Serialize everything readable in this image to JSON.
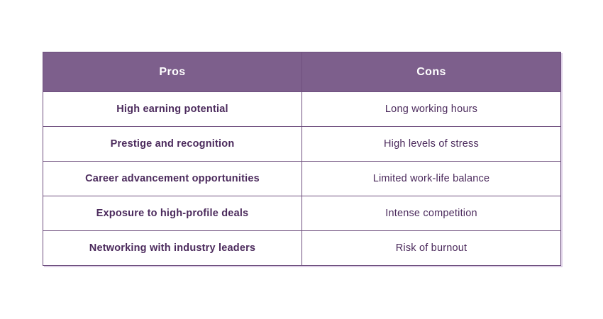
{
  "chart_data": {
    "type": "table",
    "title": "",
    "columns": [
      "Pros",
      "Cons"
    ],
    "rows": [
      [
        "High earning potential",
        "Long working hours"
      ],
      [
        "Prestige and recognition",
        "High levels of stress"
      ],
      [
        "Career advancement opportunities",
        "Limited work-life balance"
      ],
      [
        "Exposure to high-profile deals",
        "Intense competition"
      ],
      [
        "Networking with industry leaders",
        "Risk of burnout"
      ]
    ],
    "colors": {
      "header_bg": "#7d5f8c",
      "header_text": "#ffffff",
      "cell_text": "#4b2a5c",
      "border": "#6e4f7e",
      "shadow": "#ddcfe6",
      "page_bg": "#ffffff"
    }
  }
}
